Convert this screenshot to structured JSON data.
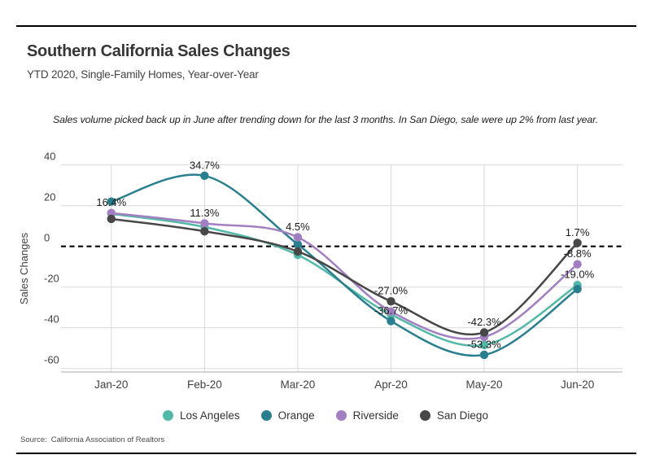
{
  "source": {
    "label": "Source:",
    "text": "California Association of Realtors"
  },
  "chart_data": {
    "type": "line",
    "title": "Southern California Sales Changes",
    "subtitle": "YTD 2020, Single-Family Homes, Year-over-Year",
    "annotation": "Sales volume picked back up in June after trending down for the last 3 months. In San Diego, sale were up 2% from last year.",
    "ylabel": "Sales Changes",
    "categories": [
      "Jan-20",
      "Feb-20",
      "Mar-20",
      "Apr-20",
      "May-20",
      "Jun-20"
    ],
    "y_ticks": [
      40,
      20,
      0,
      -20,
      -40,
      -60
    ],
    "ylim": [
      -62,
      42
    ],
    "grid": true,
    "zero_line": "dashed-black",
    "legend_position": "bottom",
    "value_format": "percent-1dp",
    "colors": {
      "gridline": "#d9d9d9",
      "axis_text": "#424242",
      "label_text": "#1a1a1a",
      "baseline": "#ababab"
    },
    "series": [
      {
        "name": "Los Angeles",
        "color": "#53b8a7",
        "values": [
          16.0,
          9.5,
          -4.2,
          -33.5,
          -48.5,
          -19.0
        ],
        "labeled": [
          false,
          false,
          false,
          false,
          false,
          true
        ]
      },
      {
        "name": "Orange",
        "color": "#2a7f8e",
        "values": [
          22.0,
          34.7,
          1.0,
          -36.7,
          -53.3,
          -21.0
        ],
        "labeled": [
          false,
          true,
          false,
          true,
          true,
          false
        ]
      },
      {
        "name": "Riverside",
        "color": "#a17fc1",
        "values": [
          16.4,
          11.3,
          4.5,
          -32.0,
          -44.5,
          -8.8
        ],
        "labeled": [
          true,
          true,
          true,
          false,
          false,
          true
        ]
      },
      {
        "name": "San Diego",
        "color": "#474747",
        "values": [
          13.5,
          7.4,
          -2.5,
          -27.0,
          -42.3,
          1.7
        ],
        "labeled": [
          false,
          false,
          false,
          true,
          true,
          true
        ]
      }
    ]
  }
}
